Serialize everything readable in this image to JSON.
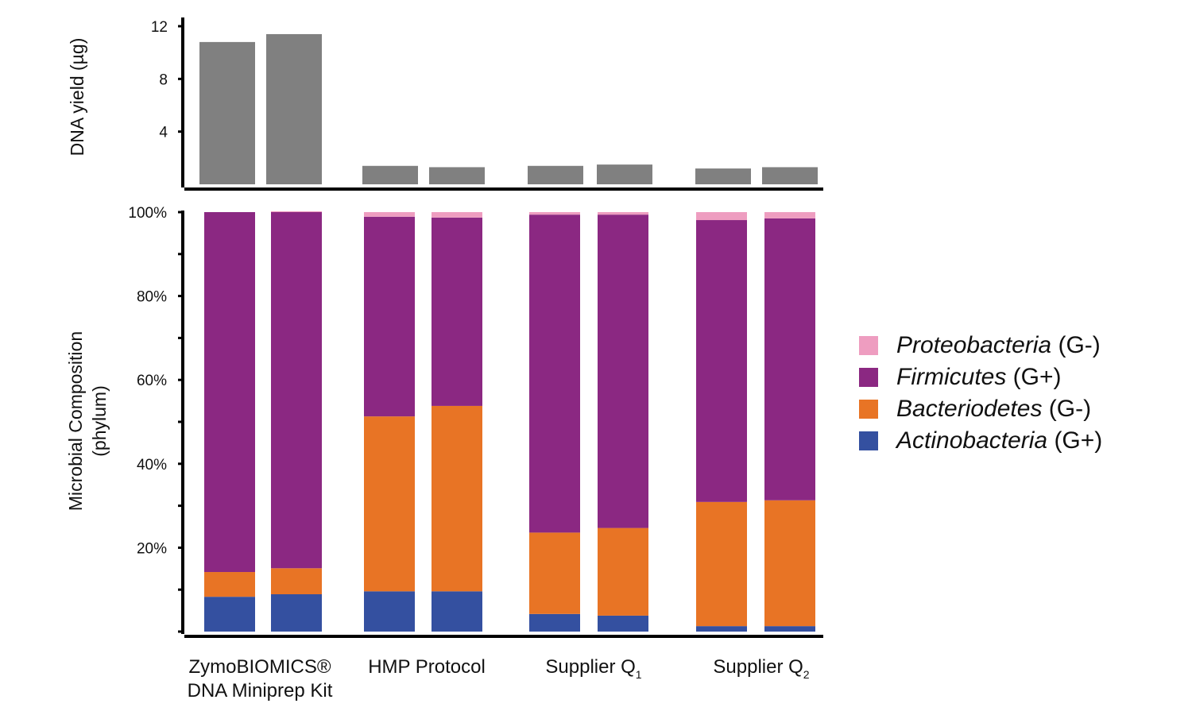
{
  "chart_data": [
    {
      "type": "bar",
      "ylabel": "DNA yield (µg)",
      "ylim": [
        0,
        12
      ],
      "yticks": [
        "4",
        "8",
        "12"
      ],
      "bar_color": "#808080",
      "groups": [
        "ZymoBIOMICS® DNA Miniprep Kit",
        "HMP Protocol",
        "Supplier Q1",
        "Supplier Q2"
      ],
      "values": [
        [
          10.8,
          11.4
        ],
        [
          1.4,
          1.3
        ],
        [
          1.4,
          1.5
        ],
        [
          1.2,
          1.3
        ]
      ]
    },
    {
      "type": "bar",
      "stacked": true,
      "ylabel_lines": [
        "Microbial Composition",
        "(phylum)"
      ],
      "ylim": [
        0,
        100
      ],
      "yticks": [
        "20%",
        "40%",
        "60%",
        "80%",
        "100%"
      ],
      "legend_position": "right",
      "categories": [
        {
          "main": "ZymoBIOMICS®",
          "line2": "DNA Miniprep Kit"
        },
        {
          "main": "HMP Protocol"
        },
        {
          "main": "Supplier Q",
          "sub": "1"
        },
        {
          "main": "Supplier Q",
          "sub": "2"
        }
      ],
      "series": [
        {
          "name": "Actinobacteria",
          "suffix": " (G+)",
          "color": "#3450A0",
          "values": [
            [
              8.3,
              8.9
            ],
            [
              9.6,
              9.6
            ],
            [
              4.2,
              3.8
            ],
            [
              1.3,
              1.3
            ]
          ]
        },
        {
          "name": "Bacteriodetes",
          "suffix": " (G-)",
          "color": "#E87425",
          "values": [
            [
              5.9,
              6.2
            ],
            [
              41.7,
              44.2
            ],
            [
              19.4,
              20.9
            ],
            [
              29.6,
              30.0
            ]
          ]
        },
        {
          "name": "Firmicutes",
          "suffix": " (G+)",
          "color": "#8B2882",
          "values": [
            [
              85.8,
              84.9
            ],
            [
              47.6,
              44.9
            ],
            [
              75.8,
              74.7
            ],
            [
              67.2,
              67.2
            ]
          ]
        },
        {
          "name": "Proteobacteria",
          "suffix": " (G-)",
          "color": "#EE9DC0",
          "values": [
            [
              0,
              0.2
            ],
            [
              1.1,
              1.3
            ],
            [
              0.6,
              0.6
            ],
            [
              1.9,
              1.5
            ]
          ]
        }
      ]
    }
  ]
}
